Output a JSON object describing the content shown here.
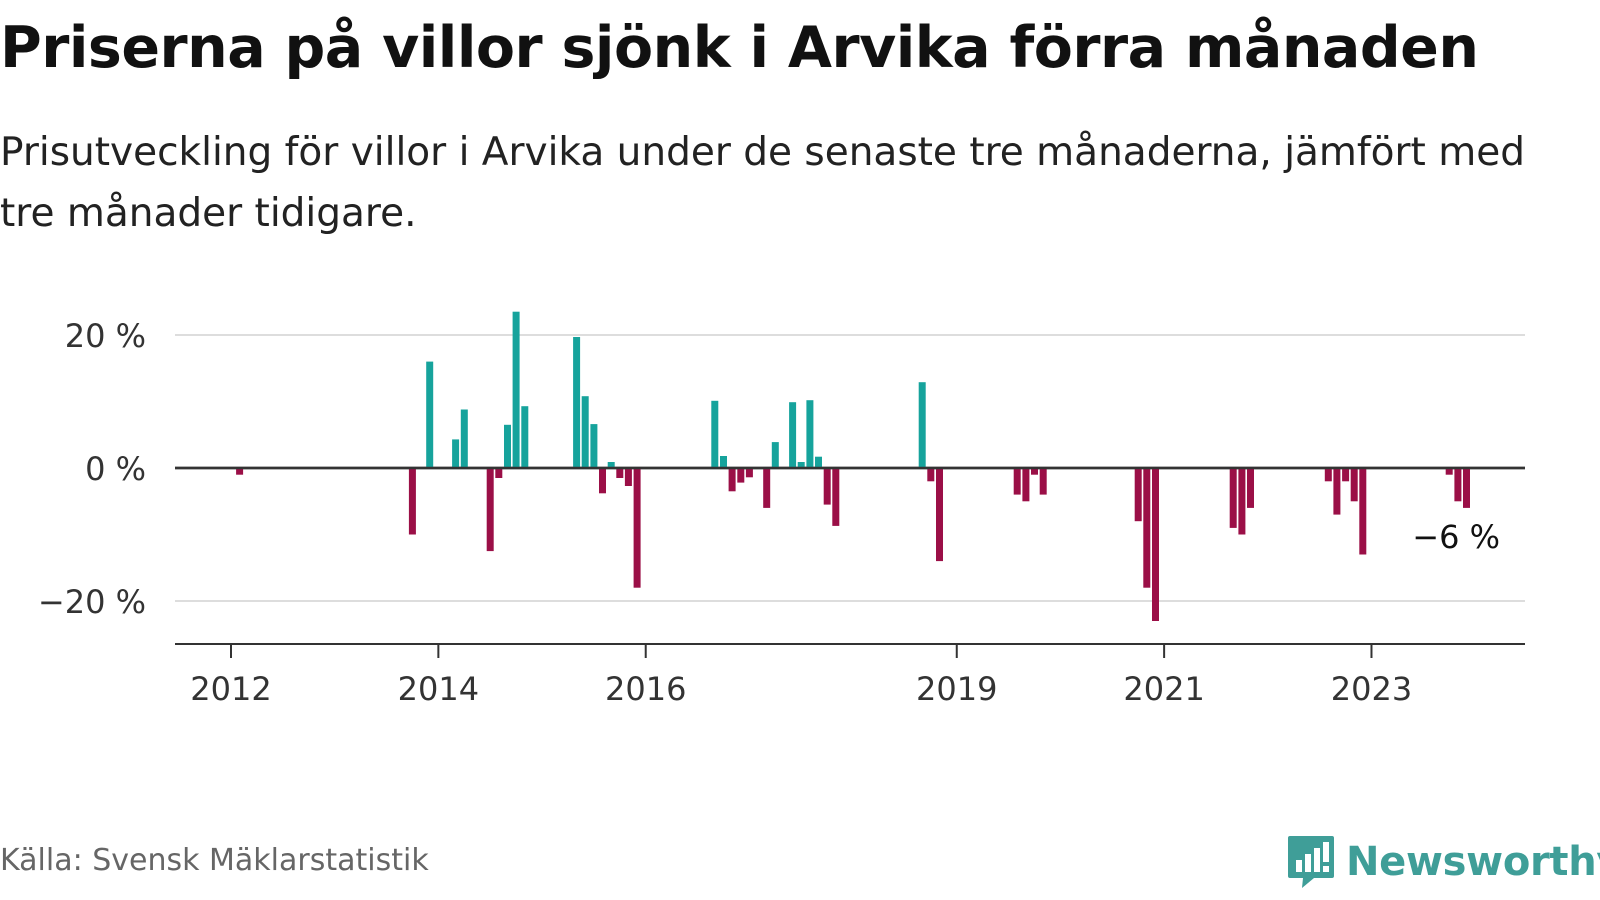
{
  "title": "Priserna på villor sjönk i Arvika förra månaden",
  "subtitle": "Prisutveckling för villor i Arvika under de senaste tre månaderna, jämfört med tre månader tidigare.",
  "source": "Källa: Svensk Mäklarstatistik",
  "brand": "Newsworthy",
  "colors": {
    "positive": "#16a39c",
    "negative": "#9b0f47",
    "grid": "#dddddd",
    "axis": "#333333",
    "brand": "#3f9e98"
  },
  "chart_data": {
    "type": "bar",
    "title": "Priserna på villor sjönk i Arvika förra månaden",
    "subtitle": "Prisutveckling för villor i Arvika under de senaste tre månaderna, jämfört med tre månader tidigare.",
    "x_axis": {
      "type": "date",
      "ticks": [
        "2012",
        "2014",
        "2016",
        "2019",
        "2021",
        "2023"
      ]
    },
    "y_axis": {
      "ticks": [
        "20 %",
        "0 %",
        "−20 %"
      ],
      "tick_values": [
        20,
        0,
        -20
      ],
      "range": [
        -26,
        21
      ],
      "gridlines": true
    },
    "annotation": {
      "label": "−6 %",
      "x": "2023-12",
      "value": -6
    },
    "series": [
      {
        "values": [
          {
            "x": "2012-02",
            "y": -1
          },
          {
            "x": "2013-10",
            "y": -10
          },
          {
            "x": "2013-12",
            "y": 16
          },
          {
            "x": "2014-03",
            "y": 4.3
          },
          {
            "x": "2014-04",
            "y": 8.8
          },
          {
            "x": "2014-07",
            "y": -12.5
          },
          {
            "x": "2014-08",
            "y": -1.5
          },
          {
            "x": "2014-09",
            "y": 6.5
          },
          {
            "x": "2014-10",
            "y": 23.5
          },
          {
            "x": "2014-11",
            "y": 9.3
          },
          {
            "x": "2015-05",
            "y": 19.7
          },
          {
            "x": "2015-06",
            "y": 10.8
          },
          {
            "x": "2015-07",
            "y": 6.6
          },
          {
            "x": "2015-08",
            "y": -3.8
          },
          {
            "x": "2015-09",
            "y": 0.9
          },
          {
            "x": "2015-10",
            "y": -1.5
          },
          {
            "x": "2015-11",
            "y": -2.7
          },
          {
            "x": "2015-12",
            "y": -18
          },
          {
            "x": "2016-09",
            "y": 10.1
          },
          {
            "x": "2016-10",
            "y": 1.8
          },
          {
            "x": "2016-11",
            "y": -3.5
          },
          {
            "x": "2016-12",
            "y": -2.2
          },
          {
            "x": "2017-01",
            "y": -1.4
          },
          {
            "x": "2017-03",
            "y": -6
          },
          {
            "x": "2017-04",
            "y": 3.9
          },
          {
            "x": "2017-06",
            "y": 9.9
          },
          {
            "x": "2017-07",
            "y": 0.9
          },
          {
            "x": "2017-08",
            "y": 10.2
          },
          {
            "x": "2017-09",
            "y": 1.7
          },
          {
            "x": "2017-10",
            "y": -5.5
          },
          {
            "x": "2017-11",
            "y": -8.7
          },
          {
            "x": "2018-09",
            "y": 12.9
          },
          {
            "x": "2018-10",
            "y": -2
          },
          {
            "x": "2018-11",
            "y": -14
          },
          {
            "x": "2019-08",
            "y": -4
          },
          {
            "x": "2019-09",
            "y": -5
          },
          {
            "x": "2019-10",
            "y": -1
          },
          {
            "x": "2019-11",
            "y": -4
          },
          {
            "x": "2020-10",
            "y": -8
          },
          {
            "x": "2020-11",
            "y": -18
          },
          {
            "x": "2020-12",
            "y": -23
          },
          {
            "x": "2021-09",
            "y": -9
          },
          {
            "x": "2021-10",
            "y": -10
          },
          {
            "x": "2021-11",
            "y": -6
          },
          {
            "x": "2022-08",
            "y": -2
          },
          {
            "x": "2022-09",
            "y": -7
          },
          {
            "x": "2022-10",
            "y": -2
          },
          {
            "x": "2022-11",
            "y": -5
          },
          {
            "x": "2022-12",
            "y": -13
          },
          {
            "x": "2023-10",
            "y": -1
          },
          {
            "x": "2023-11",
            "y": -5
          },
          {
            "x": "2023-12",
            "y": -6
          }
        ]
      }
    ]
  }
}
